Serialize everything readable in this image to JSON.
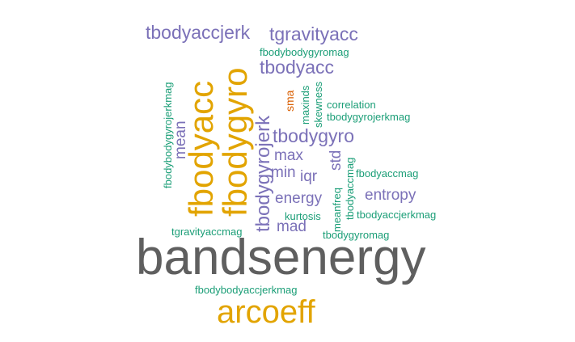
{
  "colors": {
    "grey": "#5f5f5f",
    "gold": "#e2a400",
    "purple": "#7b71b8",
    "green": "#1b9e77",
    "orange": "#d95f02"
  },
  "words": {
    "bandsenergy": "bandsenergy",
    "arcoeff": "arcoeff",
    "fbodyacc": "fbodyacc",
    "fbodygyro": "fbodygyro",
    "tbodyaccjerk": "tbodyaccjerk",
    "tgravityacc": "tgravityacc",
    "tbodyacc": "tbodyacc",
    "tbodygyro": "tbodygyro",
    "tbodygyrojerk": "tbodygyrojerk",
    "mean": "mean",
    "max": "max",
    "min": "min",
    "iqr": "iqr",
    "std": "std",
    "energy": "energy",
    "entropy": "entropy",
    "mad": "mad",
    "sma": "sma",
    "maxinds": "maxinds",
    "skewness": "skewness",
    "kurtosis": "kurtosis",
    "meanfreq": "meanfreq",
    "correlation": "correlation",
    "fbodybodygyromag": "fbodybodygyromag",
    "fbodybodygyrojerkmag": "fbodybodygyrojerkmag",
    "tbodygyrojerkmag": "tbodygyrojerkmag",
    "fbodyaccmag": "fbodyaccmag",
    "tbodyaccmag": "tbodyaccmag",
    "tbodyaccjerkmag": "tbodyaccjerkmag",
    "tgravityaccmag": "tgravityaccmag",
    "tbodygyromag": "tbodygyromag",
    "fbodybodyaccjerkmag": "fbodybodyaccjerkmag"
  }
}
